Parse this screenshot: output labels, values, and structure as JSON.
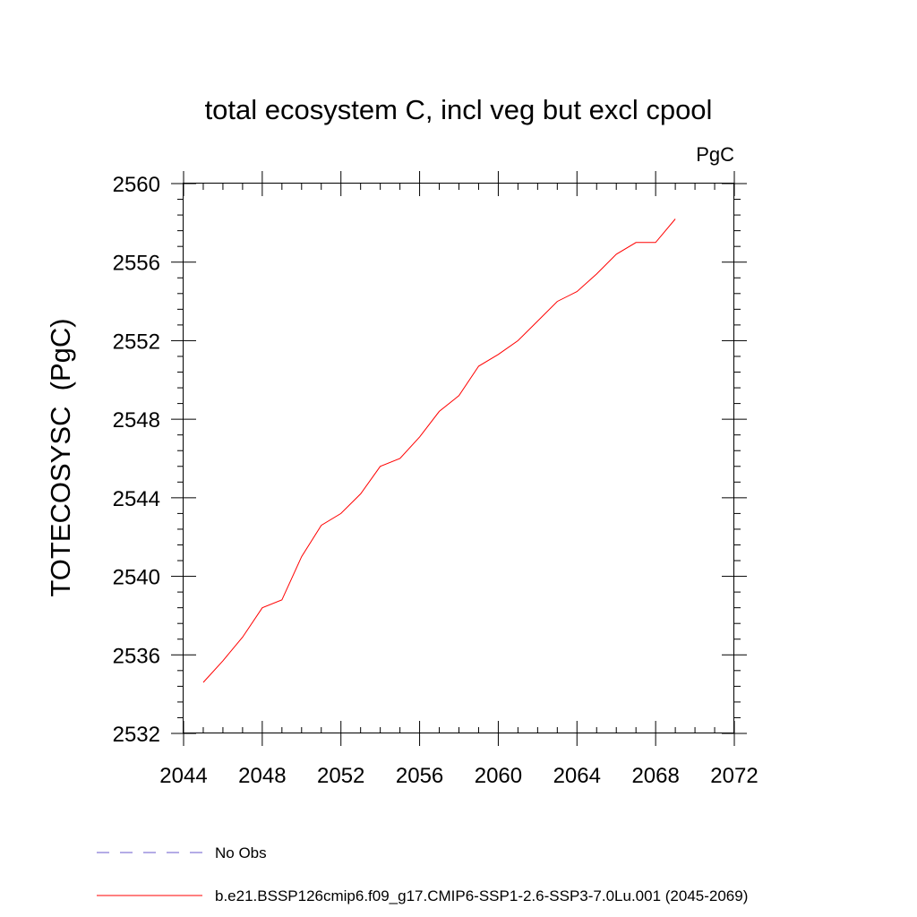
{
  "chart_data": {
    "type": "line",
    "title": "total ecosystem C, incl veg but excl cpool",
    "units": "PgC",
    "xlabel": "",
    "ylabel": "TOTECOSYSC  (PgC)",
    "xlim": [
      2044,
      2072
    ],
    "ylim": [
      2532,
      2560
    ],
    "xticks": [
      2044,
      2048,
      2052,
      2056,
      2060,
      2064,
      2068,
      2072
    ],
    "yticks": [
      2532,
      2536,
      2540,
      2544,
      2548,
      2552,
      2556,
      2560
    ],
    "grid": false,
    "legend_position": "bottom-left",
    "series": [
      {
        "name": "b.e21.BSSP126cmip6.f09_g17.CMIP6-SSP1-2.6-SSP3-7.0Lu.001 (2045-2069)",
        "color": "#ff0000",
        "style": "solid",
        "x": [
          2045,
          2046,
          2047,
          2048,
          2049,
          2050,
          2051,
          2052,
          2053,
          2054,
          2055,
          2056,
          2057,
          2058,
          2059,
          2060,
          2061,
          2062,
          2063,
          2064,
          2065,
          2066,
          2067,
          2068,
          2069
        ],
        "y": [
          2534.6,
          2535.7,
          2536.9,
          2538.4,
          2538.8,
          2541.0,
          2542.6,
          2543.2,
          2544.2,
          2545.6,
          2546.0,
          2547.1,
          2548.4,
          2549.2,
          2550.7,
          2551.3,
          2552.0,
          2553.0,
          2554.0,
          2554.5,
          2555.4,
          2556.4,
          2557.0,
          2557.0,
          2558.2
        ]
      }
    ]
  },
  "legend": [
    {
      "label": "No Obs",
      "color": "#6a5acd",
      "style": "dashed"
    },
    {
      "label": "b.e21.BSSP126cmip6.f09_g17.CMIP6-SSP1-2.6-SSP3-7.0Lu.001 (2045-2069)",
      "color": "#ff0000",
      "style": "solid"
    }
  ]
}
